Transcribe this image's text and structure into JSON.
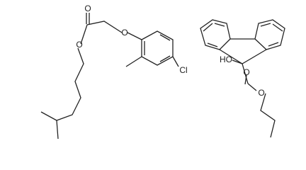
{
  "molecules": [
    {
      "atoms": [
        "O",
        "O",
        "O",
        "Cl"
      ]
    },
    {
      "atoms": [
        "HO",
        "O",
        "O"
      ]
    }
  ]
}
